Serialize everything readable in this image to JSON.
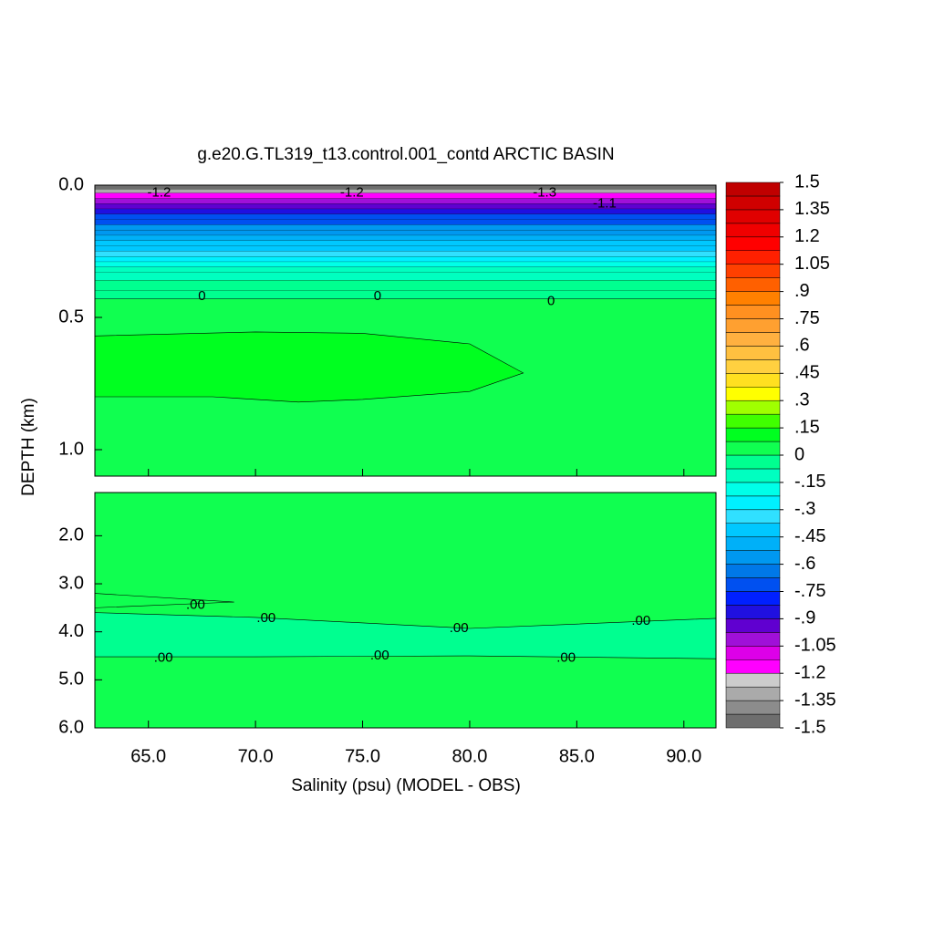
{
  "chart_data": {
    "type": "contour",
    "title": "g.e20.G.TL319_t13.control.001_contd ARCTIC BASIN",
    "x_label": "Salinity (psu) (MODEL - OBS)",
    "y_label": "DEPTH (km)",
    "xlim": [
      62.5,
      91.5
    ],
    "xticks": [
      {
        "value": 65,
        "label": "65.0"
      },
      {
        "value": 70,
        "label": "70.0"
      },
      {
        "value": 75,
        "label": "75.0"
      },
      {
        "value": 80,
        "label": "80.0"
      },
      {
        "value": 85,
        "label": "85.0"
      },
      {
        "value": 90,
        "label": "90.0"
      }
    ],
    "panels": [
      {
        "ylim": [
          0,
          1.1
        ],
        "yticks": [
          {
            "value": 0,
            "label": "0.0"
          },
          {
            "value": 0.5,
            "label": "0.5"
          },
          {
            "value": 1,
            "label": "1.0"
          }
        ],
        "background": 0.03,
        "layers": {
          "depths": [
            0,
            0.015,
            0.03,
            0.05,
            0.07,
            0.09,
            0.11,
            0.13,
            0.15,
            0.17,
            0.19,
            0.21,
            0.23,
            0.25,
            0.27,
            0.29,
            0.31,
            0.33,
            0.36,
            0.4,
            0.43
          ],
          "values": [
            -1.5,
            -1.3,
            -1.15,
            -1.05,
            -0.95,
            -0.85,
            -0.75,
            -0.7,
            -0.6,
            -0.55,
            -0.5,
            -0.45,
            -0.4,
            -0.3,
            -0.25,
            -0.2,
            -0.15,
            -0.1,
            -0.05,
            -0.02
          ]
        },
        "regions": [
          {
            "value": 0.1,
            "points": [
              [
                62.5,
                0.57
              ],
              [
                70,
                0.555
              ],
              [
                75,
                0.56
              ],
              [
                80,
                0.6
              ],
              [
                82.5,
                0.71
              ],
              [
                80,
                0.78
              ],
              [
                75,
                0.81
              ],
              [
                72,
                0.82
              ],
              [
                68,
                0.8
              ],
              [
                62.5,
                0.8
              ]
            ]
          }
        ],
        "labels": [
          {
            "text": "0",
            "x": 67.5,
            "depth": 0.42
          },
          {
            "text": "0",
            "x": 75.7,
            "depth": 0.42
          },
          {
            "text": "0",
            "x": 83.8,
            "depth": 0.44
          },
          {
            "text": "-1.2",
            "x": 65.5,
            "depth": 0.03
          },
          {
            "text": "-1.2",
            "x": 74.5,
            "depth": 0.03
          },
          {
            "text": "-1.1",
            "x": 86.3,
            "depth": 0.07
          },
          {
            "text": "-1.3",
            "x": 83.5,
            "depth": 0.03
          }
        ]
      },
      {
        "ylim": [
          1.1,
          6.0
        ],
        "yticks": [
          {
            "value": 2,
            "label": "2.0"
          },
          {
            "value": 3,
            "label": "3.0"
          },
          {
            "value": 4,
            "label": "4.0"
          },
          {
            "value": 5,
            "label": "5.0"
          },
          {
            "value": 6,
            "label": "6.0"
          }
        ],
        "background": 0.03,
        "regions": [
          {
            "value": -0.03,
            "points": [
              [
                62.5,
                3.6
              ],
              [
                70,
                3.7
              ],
              [
                80,
                3.93
              ],
              [
                91.5,
                3.72
              ],
              [
                91.5,
                4.56
              ],
              [
                80,
                4.5
              ],
              [
                70,
                4.52
              ],
              [
                62.5,
                4.52
              ]
            ]
          },
          {
            "value": 0.03,
            "points": [
              [
                62.5,
                3.2
              ],
              [
                69,
                3.38
              ],
              [
                62.5,
                3.5
              ]
            ]
          }
        ],
        "labels": [
          {
            "text": ".00",
            "x": 67.2,
            "depth": 3.45
          },
          {
            "text": ".00",
            "x": 70.5,
            "depth": 3.72
          },
          {
            "text": ".00",
            "x": 79.5,
            "depth": 3.93
          },
          {
            "text": ".00",
            "x": 88,
            "depth": 3.78
          },
          {
            "text": ".00",
            "x": 65.7,
            "depth": 4.55
          },
          {
            "text": ".00",
            "x": 75.8,
            "depth": 4.5
          },
          {
            "text": ".00",
            "x": 84.5,
            "depth": 4.55
          }
        ]
      }
    ],
    "colorbar": {
      "lim": [
        -1.5,
        1.5
      ],
      "ticks": [
        1.5,
        1.35,
        1.2,
        1.05,
        {
          "value": 0.9,
          "label": ".9"
        },
        {
          "value": 0.75,
          "label": ".75"
        },
        {
          "value": 0.6,
          "label": ".6"
        },
        {
          "value": 0.45,
          "label": ".45"
        },
        {
          "value": 0.3,
          "label": ".3"
        },
        {
          "value": 0.15,
          "label": ".15"
        },
        0,
        {
          "value": -0.15,
          "label": "-.15"
        },
        {
          "value": -0.3,
          "label": "-.3"
        },
        {
          "value": -0.45,
          "label": "-.45"
        },
        {
          "value": -0.6,
          "label": "-.6"
        },
        {
          "value": -0.75,
          "label": "-.75"
        },
        {
          "value": -0.9,
          "label": "-.9"
        },
        -1.05,
        -1.2,
        -1.35,
        -1.5
      ],
      "colors": [
        "#6e6e6e",
        "#8c8c8c",
        "#aaaaaa",
        "#cccccc",
        "#ff00ff",
        "#dd00e8",
        "#a010d8",
        "#6000d0",
        "#2010e0",
        "#0020ff",
        "#0050f0",
        "#0078e8",
        "#0098f0",
        "#00b0f8",
        "#00c8ff",
        "#30e0ff",
        "#00f0ff",
        "#00ffe8",
        "#00ffc0",
        "#00ff90",
        "#10ff50",
        "#00ff20",
        "#40ff00",
        "#a0ff00",
        "#ffff00",
        "#ffe020",
        "#ffd040",
        "#ffc040",
        "#ffb040",
        "#ffa030",
        "#ff9020",
        "#ff8000",
        "#ff6000",
        "#ff4000",
        "#ff2000",
        "#ff0000",
        "#f00000",
        "#e00000",
        "#d00000",
        "#c00000"
      ]
    }
  }
}
